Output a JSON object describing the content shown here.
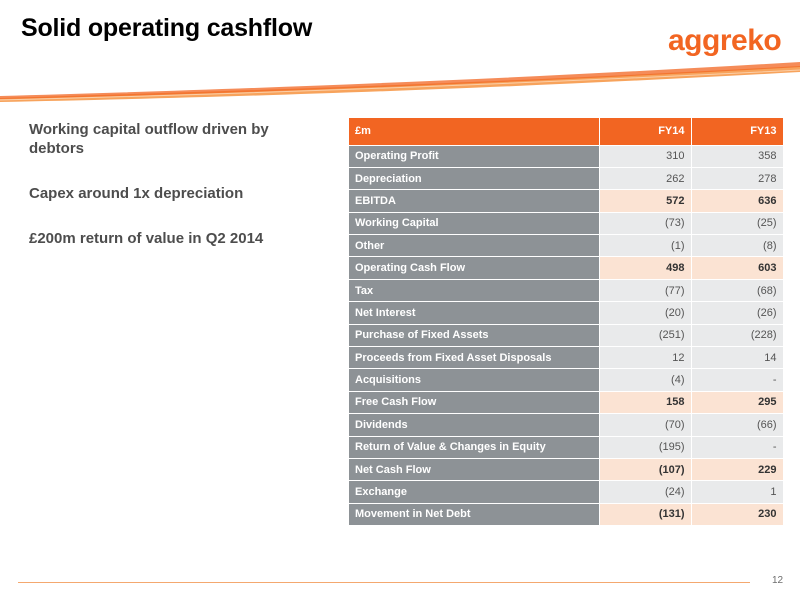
{
  "slide": {
    "title": "Solid operating cashflow",
    "logo_text": "aggreko",
    "page_number": "12",
    "accent_color": "#f26522"
  },
  "bullets": [
    "Working capital outflow driven by debtors",
    "Capex around 1x depreciation",
    "£200m return of value in Q2 2014"
  ],
  "table": {
    "headers": [
      "£m",
      "FY14",
      "FY13"
    ],
    "rows": [
      {
        "label": "Operating Profit",
        "fy14": "310",
        "fy13": "358",
        "highlight": false
      },
      {
        "label": "Depreciation",
        "fy14": "262",
        "fy13": "278",
        "highlight": false
      },
      {
        "label": "EBITDA",
        "fy14": "572",
        "fy13": "636",
        "highlight": true
      },
      {
        "label": "Working Capital",
        "fy14": "(73)",
        "fy13": "(25)",
        "highlight": false
      },
      {
        "label": "Other",
        "fy14": "(1)",
        "fy13": "(8)",
        "highlight": false
      },
      {
        "label": "Operating Cash Flow",
        "fy14": "498",
        "fy13": "603",
        "highlight": true
      },
      {
        "label": "Tax",
        "fy14": "(77)",
        "fy13": "(68)",
        "highlight": false
      },
      {
        "label": "Net Interest",
        "fy14": "(20)",
        "fy13": "(26)",
        "highlight": false
      },
      {
        "label": "Purchase of Fixed Assets",
        "fy14": "(251)",
        "fy13": "(228)",
        "highlight": false
      },
      {
        "label": "Proceeds from Fixed Asset Disposals",
        "fy14": "12",
        "fy13": "14",
        "highlight": false
      },
      {
        "label": "Acquisitions",
        "fy14": "(4)",
        "fy13": "-",
        "highlight": false
      },
      {
        "label": "Free Cash Flow",
        "fy14": "158",
        "fy13": "295",
        "highlight": true
      },
      {
        "label": "Dividends",
        "fy14": "(70)",
        "fy13": "(66)",
        "highlight": false
      },
      {
        "label": "Return of Value & Changes in Equity",
        "fy14": "(195)",
        "fy13": "-",
        "highlight": false
      },
      {
        "label": "Net Cash Flow",
        "fy14": "(107)",
        "fy13": "229",
        "highlight": true
      },
      {
        "label": "Exchange",
        "fy14": "(24)",
        "fy13": "1",
        "highlight": false
      },
      {
        "label": "Movement in Net Debt",
        "fy14": "(131)",
        "fy13": "230",
        "highlight": true
      }
    ]
  }
}
